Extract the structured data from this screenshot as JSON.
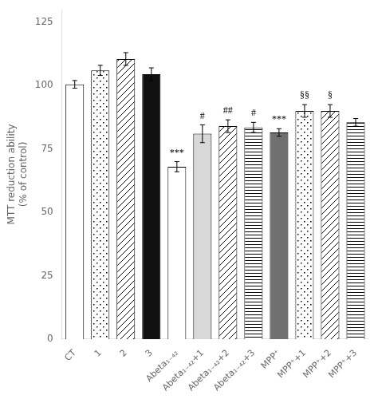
{
  "chart_data": {
    "type": "bar",
    "categories": [
      "CT",
      "1",
      "2",
      "3",
      "Abeta₁₋₄₂",
      "Abeta₁₋₄₂+1",
      "Abeta₁₋₄₂+2",
      "Abeta₁₋₄₂+3",
      "MPP⁺",
      "MPP⁺+1",
      "MPP⁺+2",
      "MPP⁺+3"
    ],
    "values": [
      100.5,
      106.0,
      110.5,
      104.5,
      68.0,
      81.0,
      84.0,
      83.5,
      81.5,
      90.0,
      90.0,
      85.5
    ],
    "errors": [
      1.5,
      2.0,
      2.5,
      2.5,
      2.0,
      3.5,
      2.5,
      2.0,
      1.5,
      2.5,
      2.5,
      1.5
    ],
    "colors": [
      "white",
      "white",
      "white",
      "#111111",
      "white",
      "#d8d8d8",
      "white",
      "white",
      "#707070",
      "white",
      "white",
      "white"
    ],
    "ylabel": "MTT reduction ability\n(% of control)",
    "ylim": [
      0,
      130
    ],
    "yticks": [
      0,
      25,
      50,
      75,
      100,
      125
    ],
    "grid": false,
    "annotations": [
      {
        "category": "Abeta₁₋₄₂",
        "text": "***"
      },
      {
        "category": "Abeta₁₋₄₂+1",
        "text": "#"
      },
      {
        "category": "Abeta₁₋₄₂+2",
        "text": "##"
      },
      {
        "category": "Abeta₁₋₄₂+3",
        "text": "#"
      },
      {
        "category": "MPP⁺",
        "text": "***"
      },
      {
        "category": "MPP⁺+1",
        "text": "§§"
      },
      {
        "category": "MPP⁺+2",
        "text": "§"
      }
    ]
  }
}
